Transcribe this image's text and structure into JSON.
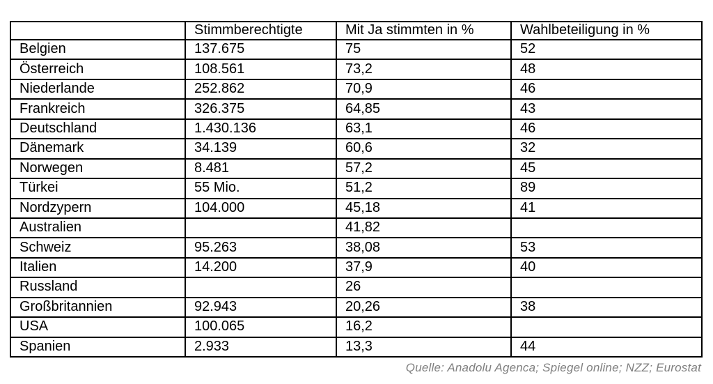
{
  "chart_data": {
    "type": "table",
    "title": "",
    "columns": [
      "",
      "Stimmberechtigte",
      "Mit Ja stimmten in %",
      "Wahlbeteiligung in %"
    ],
    "rows": [
      [
        "Belgien",
        "137.675",
        "75",
        "52"
      ],
      [
        "Österreich",
        "108.561",
        "73,2",
        "48"
      ],
      [
        "Niederlande",
        "252.862",
        "70,9",
        "46"
      ],
      [
        "Frankreich",
        "326.375",
        "64,85",
        "43"
      ],
      [
        "Deutschland",
        "1.430.136",
        "63,1",
        "46"
      ],
      [
        "Dänemark",
        "34.139",
        "60,6",
        "32"
      ],
      [
        "Norwegen",
        "8.481",
        "57,2",
        "45"
      ],
      [
        "Türkei",
        "55 Mio.",
        "51,2",
        "89"
      ],
      [
        "Nordzypern",
        "104.000",
        "45,18",
        "41"
      ],
      [
        "Australien",
        "",
        "41,82",
        ""
      ],
      [
        "Schweiz",
        "95.263",
        "38,08",
        "53"
      ],
      [
        "Italien",
        "14.200",
        "37,9",
        "40"
      ],
      [
        "Russland",
        "",
        "26",
        ""
      ],
      [
        "Großbritannien",
        "92.943",
        "20,26",
        "38"
      ],
      [
        "USA",
        "100.065",
        "16,2",
        ""
      ],
      [
        "Spanien",
        "2.933",
        "13,3",
        "44"
      ]
    ],
    "source_note": "Quelle: Anadolu Agenca; Spiegel online; NZZ; Eurostat"
  },
  "colors": {
    "border": "#000000",
    "text": "#000000",
    "source_text": "#7f7f7f",
    "background": "#ffffff"
  }
}
